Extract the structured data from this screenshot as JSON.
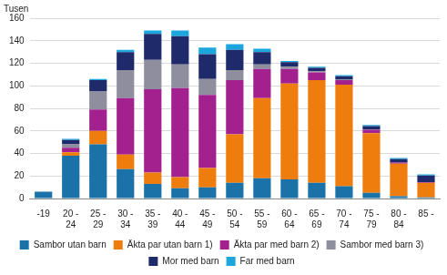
{
  "chart_data": {
    "type": "bar",
    "stacked": true,
    "ylabel": "Tusen",
    "categories": [
      "-19",
      "20 - 24",
      "25 - 29",
      "30 - 34",
      "35 - 39",
      "40 - 44",
      "45 - 49",
      "50 - 54",
      "55 - 59",
      "60 - 64",
      "65 - 69",
      "70 - 74",
      "75 - 79",
      "80 - 84",
      "85 -"
    ],
    "series": [
      {
        "name": "Sambor utan barn",
        "color": "#1b72a8",
        "values": [
          6,
          38,
          48,
          26,
          13,
          9,
          10,
          14,
          18,
          17,
          14,
          11,
          5,
          2,
          1
        ]
      },
      {
        "name": "Äkta par utan barn 1)",
        "color": "#ee7d0e",
        "values": [
          0,
          3,
          12,
          13,
          10,
          10,
          17,
          43,
          71,
          85,
          91,
          90,
          53,
          29,
          13
        ]
      },
      {
        "name": "Äkta par med barn 2)",
        "color": "#a3208f",
        "values": [
          0,
          4,
          19,
          50,
          74,
          79,
          65,
          48,
          26,
          13,
          7,
          4,
          3,
          1,
          0.5
        ]
      },
      {
        "name": "Sambor med barn 3)",
        "color": "#8e8e9e",
        "values": [
          0,
          3,
          16,
          25,
          26,
          21,
          14,
          9,
          4,
          2,
          1,
          0.5,
          0.3,
          0,
          0
        ]
      },
      {
        "name": "Mor med barn",
        "color": "#1f2a6b",
        "values": [
          0,
          4,
          10,
          16,
          23,
          25,
          22,
          18,
          11,
          4,
          3,
          3,
          3,
          3,
          6
        ]
      },
      {
        "name": "Far med barn",
        "color": "#1ba6de",
        "values": [
          0,
          1,
          1,
          2,
          3,
          5,
          6,
          5,
          3,
          1,
          1,
          1,
          1,
          1,
          1
        ]
      }
    ],
    "ylim": [
      0,
      160
    ],
    "yticks": [
      0,
      20,
      40,
      60,
      80,
      100,
      120,
      140,
      160
    ],
    "grid": true,
    "legend": "bottom"
  }
}
